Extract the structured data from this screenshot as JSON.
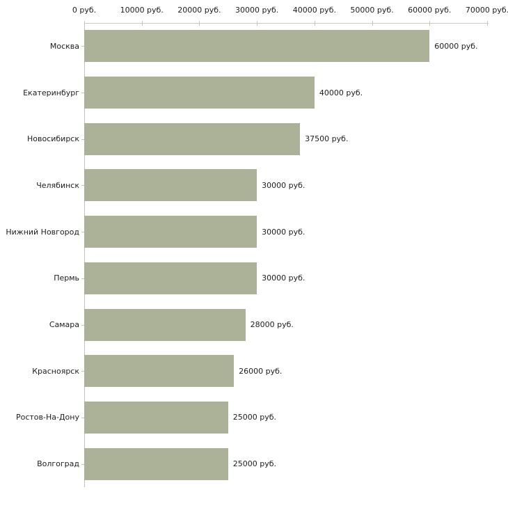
{
  "chart_data": {
    "type": "bar",
    "orientation": "horizontal",
    "unit_suffix": " руб.",
    "categories": [
      "Москва",
      "Екатеринбург",
      "Новосибирск",
      "Челябинск",
      "Нижний Новгород",
      "Пермь",
      "Самара",
      "Красноярск",
      "Ростов-На-Дону",
      "Волгоград"
    ],
    "values": [
      60000,
      40000,
      37500,
      30000,
      30000,
      30000,
      28000,
      26000,
      25000,
      25000
    ],
    "value_labels": [
      "60000 руб.",
      "40000 руб.",
      "37500 руб.",
      "30000 руб.",
      "30000 руб.",
      "30000 руб.",
      "28000 руб.",
      "26000 руб.",
      "25000 руб.",
      "25000 руб."
    ],
    "x_ticks": [
      "0 руб.",
      "10000 руб.",
      "20000 руб.",
      "30000 руб.",
      "40000 руб.",
      "50000 руб.",
      "60000 руб.",
      "70000 руб."
    ],
    "xlim": [
      0,
      70000
    ],
    "grid": false,
    "legend": false,
    "colors": {
      "bar": "#abb298",
      "axis_line": "#c9c9c9",
      "tick_mark": "#c5c5a3",
      "text": "#1c1c1c",
      "background": "#ffffff"
    }
  }
}
